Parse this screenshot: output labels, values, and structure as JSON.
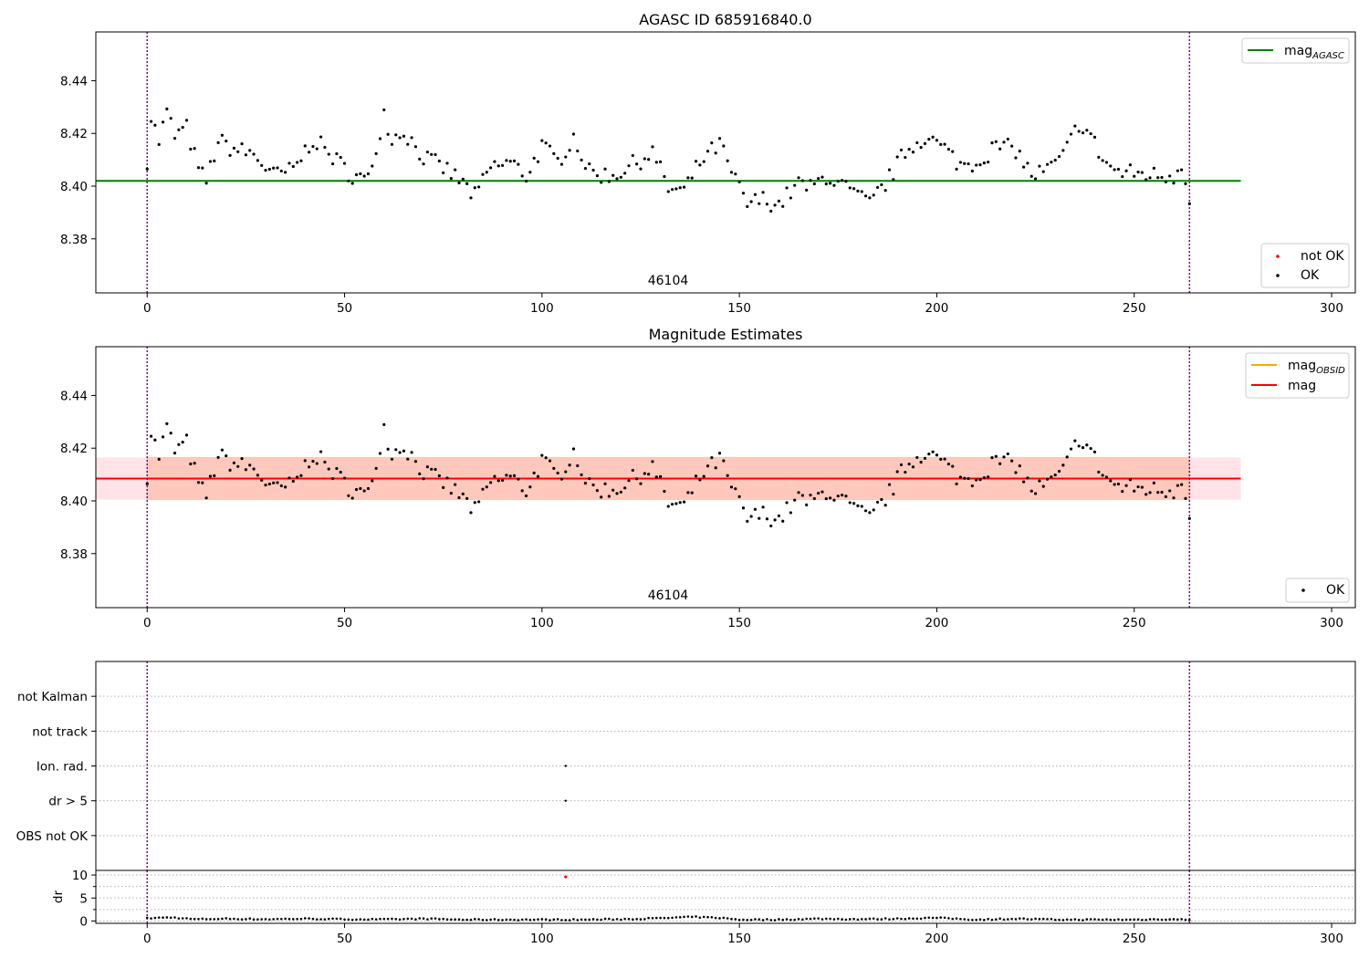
{
  "colors": {
    "mag_agasc": "#008000",
    "mag_obsid": "#ffa500",
    "mag": "#ff0000",
    "ok_points": "#000000",
    "not_ok_points": "#ff0000",
    "vline": "#800080",
    "band_outer": "#ffc0cb",
    "band_inner": "#ffa07a"
  },
  "chart_data": [
    {
      "type": "scatter",
      "title": "AGASC ID 685916840.0",
      "annotation": "46104",
      "xlim": [
        -13,
        306
      ],
      "ylim": [
        8.3595,
        8.4585
      ],
      "xticks": [
        0,
        50,
        100,
        150,
        200,
        250,
        300
      ],
      "yticks": [
        8.38,
        8.4,
        8.42,
        8.44
      ],
      "ytick_labels": [
        "8.38",
        "8.40",
        "8.42",
        "8.44"
      ],
      "vlines": [
        0,
        264
      ],
      "hline": {
        "name": "mag",
        "subscript": "AGASC",
        "y": 8.402,
        "x_range": [
          -13,
          277
        ]
      },
      "legend_lines": [
        {
          "name": "mag",
          "subscript": "AGASC",
          "color": "#008000"
        }
      ],
      "legend_points": [
        {
          "label": "not OK",
          "color": "#ff0000"
        },
        {
          "label": "OK",
          "color": "#000000"
        }
      ],
      "grid": false
    },
    {
      "type": "scatter",
      "title": "Magnitude Estimates",
      "annotation": "46104",
      "xlim": [
        -13,
        306
      ],
      "ylim": [
        8.3595,
        8.4585
      ],
      "xticks": [
        0,
        50,
        100,
        150,
        200,
        250,
        300
      ],
      "yticks": [
        8.38,
        8.4,
        8.42,
        8.44
      ],
      "ytick_labels": [
        "8.38",
        "8.40",
        "8.42",
        "8.44"
      ],
      "vlines": [
        0,
        264
      ],
      "mag_line": {
        "y": 8.4085,
        "x_range": [
          -13,
          277
        ]
      },
      "mag_band": {
        "y0": 8.4005,
        "y1": 8.4165,
        "x_range": [
          -13,
          277
        ]
      },
      "obsid_line": {
        "y": 8.4085,
        "x_range": [
          0,
          264
        ]
      },
      "obsid_band": {
        "y0": 8.4005,
        "y1": 8.4165,
        "x_range": [
          0,
          264
        ]
      },
      "legend_lines": [
        {
          "name": "mag",
          "subscript": "OBSID",
          "color": "#ffa500"
        },
        {
          "name": "mag",
          "subscript": "",
          "color": "#ff0000"
        }
      ],
      "legend_points": [
        {
          "label": "OK",
          "color": "#000000"
        }
      ],
      "grid": false
    },
    {
      "type": "scatter",
      "categories": [
        "not Kalman",
        "not track",
        "Ion. rad.",
        "dr > 5",
        "OBS not OK"
      ],
      "flagged_points": [
        {
          "x": 106,
          "category": "Ion. rad."
        },
        {
          "x": 106,
          "category": "dr > 5"
        }
      ],
      "vlines": [
        0,
        264
      ],
      "grid": true
    },
    {
      "type": "scatter",
      "ylabel": "dr",
      "ylim": [
        -0.5,
        11
      ],
      "yticks": [
        0,
        5,
        10
      ],
      "ytick_labels": [
        "0",
        "5",
        "10"
      ],
      "xticks": [
        0,
        50,
        100,
        150,
        200,
        250,
        300
      ],
      "outlier": {
        "x": 106,
        "y": 9.6
      },
      "vlines": [
        0,
        264
      ]
    }
  ],
  "series": {
    "n": 265,
    "mag_keypoints": [
      [
        0,
        8.41
      ],
      [
        1,
        8.426
      ],
      [
        3,
        8.417
      ],
      [
        5,
        8.428
      ],
      [
        7,
        8.419
      ],
      [
        10,
        8.422
      ],
      [
        13,
        8.406
      ],
      [
        15,
        8.402
      ],
      [
        18,
        8.417
      ],
      [
        22,
        8.414
      ],
      [
        27,
        8.412
      ],
      [
        32,
        8.404
      ],
      [
        37,
        8.406
      ],
      [
        42,
        8.418
      ],
      [
        47,
        8.411
      ],
      [
        52,
        8.404
      ],
      [
        56,
        8.402
      ],
      [
        58,
        8.415
      ],
      [
        60,
        8.428
      ],
      [
        62,
        8.418
      ],
      [
        65,
        8.421
      ],
      [
        70,
        8.411
      ],
      [
        76,
        8.406
      ],
      [
        80,
        8.401
      ],
      [
        83,
        8.396
      ],
      [
        87,
        8.407
      ],
      [
        92,
        8.409
      ],
      [
        96,
        8.404
      ],
      [
        100,
        8.415
      ],
      [
        104,
        8.409
      ],
      [
        108,
        8.419
      ],
      [
        112,
        8.405
      ],
      [
        118,
        8.404
      ],
      [
        124,
        8.409
      ],
      [
        128,
        8.413
      ],
      [
        132,
        8.399
      ],
      [
        136,
        8.398
      ],
      [
        140,
        8.409
      ],
      [
        145,
        8.416
      ],
      [
        148,
        8.405
      ],
      [
        152,
        8.393
      ],
      [
        156,
        8.395
      ],
      [
        160,
        8.393
      ],
      [
        165,
        8.401
      ],
      [
        168,
        8.399
      ],
      [
        172,
        8.404
      ],
      [
        178,
        8.398
      ],
      [
        183,
        8.393
      ],
      [
        188,
        8.403
      ],
      [
        192,
        8.413
      ],
      [
        197,
        8.419
      ],
      [
        202,
        8.414
      ],
      [
        206,
        8.408
      ],
      [
        210,
        8.409
      ],
      [
        215,
        8.415
      ],
      [
        220,
        8.414
      ],
      [
        224,
        8.404
      ],
      [
        228,
        8.406
      ],
      [
        232,
        8.411
      ],
      [
        236,
        8.424
      ],
      [
        239,
        8.419
      ],
      [
        242,
        8.41
      ],
      [
        246,
        8.405
      ],
      [
        250,
        8.405
      ],
      [
        256,
        8.404
      ],
      [
        260,
        8.404
      ],
      [
        262,
        8.409
      ],
      [
        264,
        8.396
      ]
    ],
    "dr_keypoints": [
      [
        0,
        0.6
      ],
      [
        6,
        0.8
      ],
      [
        12,
        0.4
      ],
      [
        20,
        0.5
      ],
      [
        30,
        0.4
      ],
      [
        40,
        0.5
      ],
      [
        50,
        0.4
      ],
      [
        60,
        0.35
      ],
      [
        70,
        0.5
      ],
      [
        80,
        0.3
      ],
      [
        90,
        0.3
      ],
      [
        100,
        0.3
      ],
      [
        110,
        0.3
      ],
      [
        120,
        0.4
      ],
      [
        130,
        0.6
      ],
      [
        138,
        0.9
      ],
      [
        145,
        0.7
      ],
      [
        150,
        0.3
      ],
      [
        160,
        0.3
      ],
      [
        170,
        0.5
      ],
      [
        180,
        0.4
      ],
      [
        190,
        0.5
      ],
      [
        200,
        0.7
      ],
      [
        210,
        0.3
      ],
      [
        220,
        0.5
      ],
      [
        230,
        0.3
      ],
      [
        240,
        0.3
      ],
      [
        250,
        0.3
      ],
      [
        258,
        0.4
      ],
      [
        264,
        0.3
      ]
    ]
  }
}
